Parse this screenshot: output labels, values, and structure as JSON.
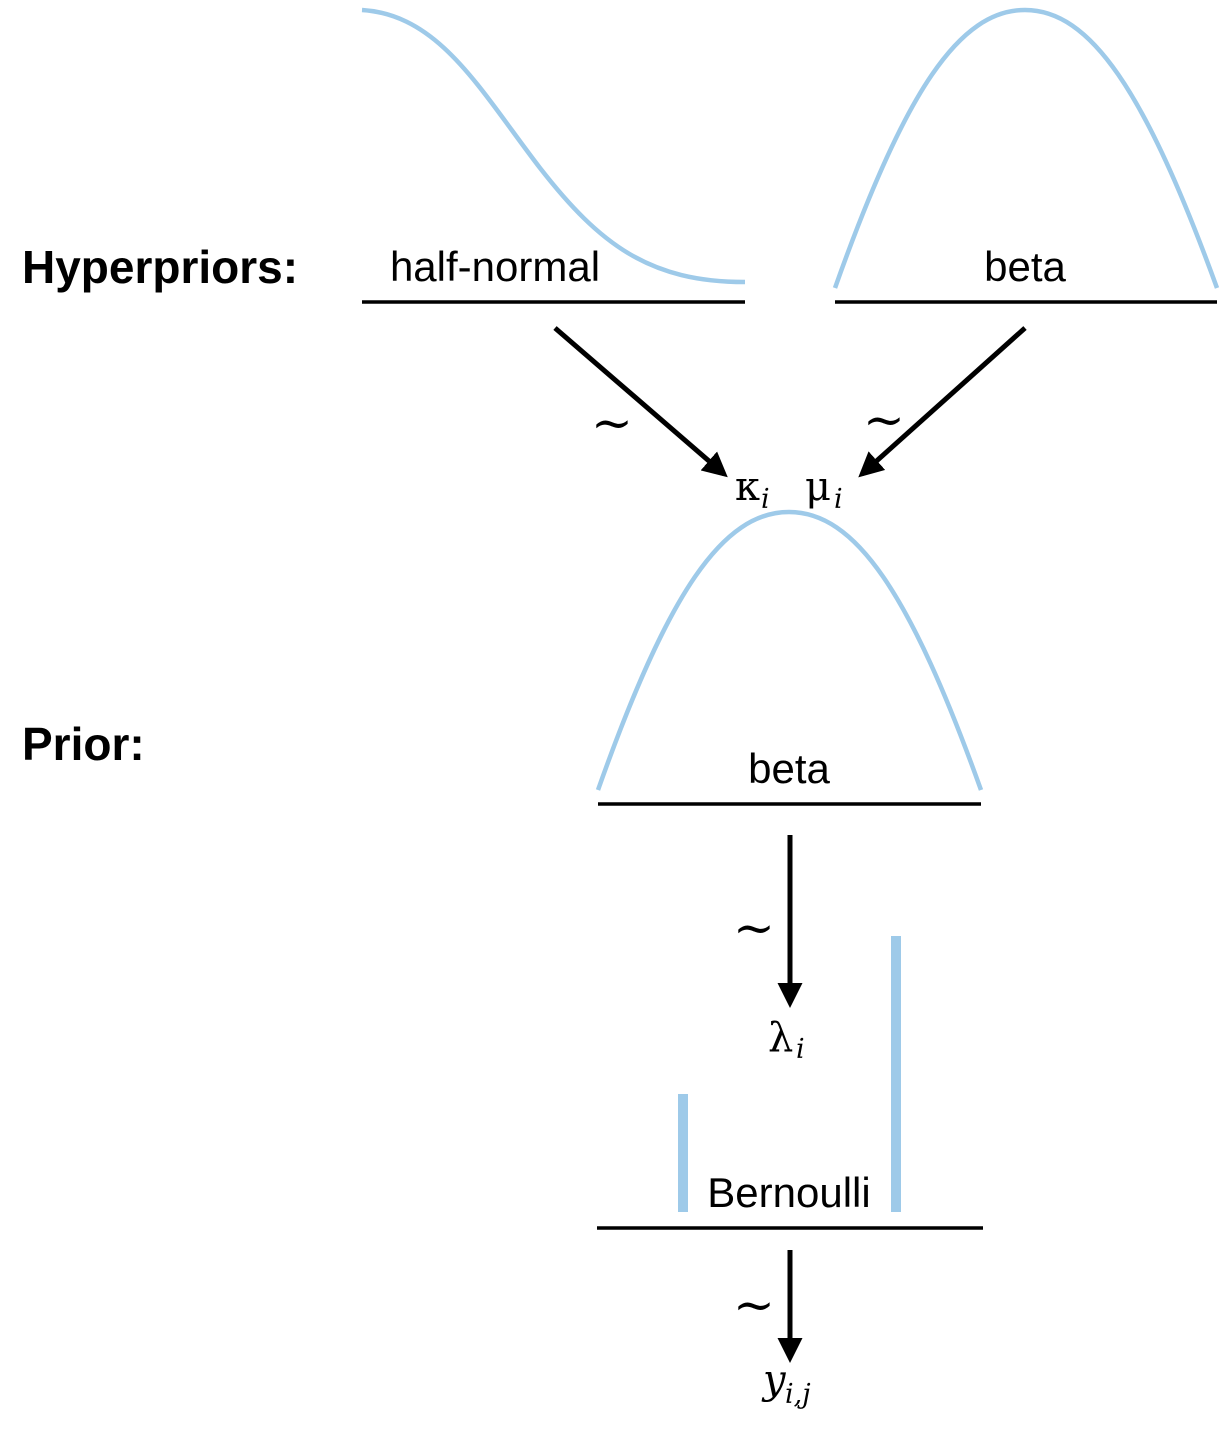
{
  "labels": {
    "hyperpriors": "Hyperpriors:",
    "prior": "Prior:"
  },
  "distributions": {
    "half_normal": "half-normal",
    "beta_hyper": "beta",
    "beta_prior": "beta",
    "bernoulli": "Bernoulli"
  },
  "symbols": {
    "tilde": "~",
    "kappa": "κ",
    "kappa_sub": "i",
    "mu": "μ",
    "mu_sub": "i",
    "lambda": "λ",
    "lambda_sub": "i",
    "y": "y",
    "y_sub": "i,j"
  },
  "colors": {
    "curve": "#9ecae9",
    "line": "#000000"
  }
}
